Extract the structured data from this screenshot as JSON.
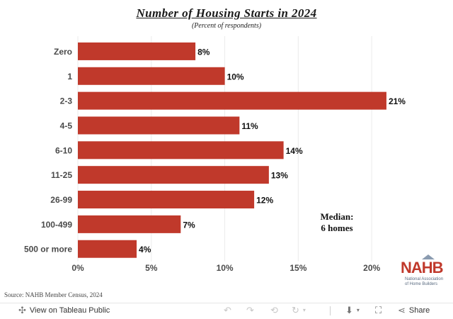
{
  "chart_data": {
    "type": "bar",
    "orientation": "horizontal",
    "title": "Number of Housing Starts in 2024",
    "subtitle": "(Percent of respondents)",
    "categories": [
      "Zero",
      "1",
      "2-3",
      "4-5",
      "6-10",
      "11-25",
      "26-99",
      "100-499",
      "500 or more"
    ],
    "values": [
      8,
      10,
      21,
      11,
      14,
      13,
      12,
      7,
      4
    ],
    "value_labels": [
      "8%",
      "10%",
      "21%",
      "11%",
      "14%",
      "13%",
      "12%",
      "7%",
      "4%"
    ],
    "x_ticks": [
      "0%",
      "5%",
      "10%",
      "15%",
      "20%"
    ],
    "x_tick_values": [
      0,
      5,
      10,
      15,
      20
    ],
    "xlim": [
      0,
      22.4
    ],
    "grid": "vertical",
    "bar_color": "#c0392b",
    "annotation": [
      "Median:",
      "6  homes"
    ]
  },
  "source": "Source: NAHB Member Census, 2024",
  "logo": {
    "mark": "NAHB",
    "text": [
      "National Association",
      "of Home Builders"
    ]
  },
  "toolbar": {
    "view_label": "View on Tableau Public",
    "view_icon": "tableau-icon",
    "undo_icon": "undo-icon",
    "redo_icon": "redo-icon",
    "revert_icon": "revert-icon",
    "refresh_icon": "refresh-icon",
    "download_icon": "download-icon",
    "fullscreen_icon": "fullscreen-icon",
    "share_label": "Share",
    "share_icon": "share-icon"
  }
}
